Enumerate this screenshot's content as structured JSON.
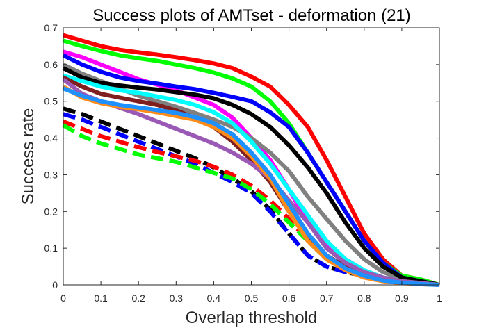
{
  "chart_data": {
    "type": "line",
    "title": "Success plots of AMTset - deformation (21)",
    "xlabel": "Overlap threshold",
    "ylabel": "Success rate",
    "xlim": [
      0,
      1
    ],
    "ylim": [
      0,
      0.7
    ],
    "x_ticks": [
      "0",
      "0.1",
      "0.2",
      "0.3",
      "0.4",
      "0.5",
      "0.6",
      "0.7",
      "0.8",
      "0.9",
      "1"
    ],
    "y_ticks": [
      "0",
      "0.1",
      "0.2",
      "0.3",
      "0.4",
      "0.5",
      "0.6",
      "0.7"
    ],
    "grid": false,
    "x": [
      0,
      0.05,
      0.1,
      0.15,
      0.2,
      0.25,
      0.3,
      0.35,
      0.4,
      0.45,
      0.5,
      0.55,
      0.6,
      0.65,
      0.7,
      0.75,
      0.8,
      0.85,
      0.9,
      0.95,
      1.0
    ],
    "series": [
      {
        "color": "#ff0000",
        "dash": false,
        "values": [
          0.68,
          0.665,
          0.65,
          0.64,
          0.633,
          0.627,
          0.62,
          0.612,
          0.603,
          0.59,
          0.567,
          0.54,
          0.49,
          0.43,
          0.34,
          0.24,
          0.14,
          0.07,
          0.025,
          0.015,
          0.0
        ]
      },
      {
        "color": "#00ff00",
        "dash": false,
        "values": [
          0.665,
          0.65,
          0.637,
          0.625,
          0.617,
          0.61,
          0.6,
          0.59,
          0.578,
          0.562,
          0.54,
          0.5,
          0.44,
          0.36,
          0.28,
          0.2,
          0.12,
          0.06,
          0.025,
          0.015,
          0.0
        ]
      },
      {
        "color": "#ff00ff",
        "dash": false,
        "values": [
          0.635,
          0.62,
          0.6,
          0.58,
          0.56,
          0.545,
          0.53,
          0.51,
          0.49,
          0.455,
          0.4,
          0.34,
          0.26,
          0.17,
          0.11,
          0.07,
          0.04,
          0.02,
          0.01,
          0.005,
          0.0
        ]
      },
      {
        "color": "#0000ff",
        "dash": false,
        "values": [
          0.625,
          0.6,
          0.58,
          0.565,
          0.555,
          0.548,
          0.54,
          0.533,
          0.523,
          0.512,
          0.5,
          0.47,
          0.43,
          0.36,
          0.28,
          0.2,
          0.12,
          0.06,
          0.02,
          0.01,
          0.0
        ]
      },
      {
        "color": "#808080",
        "dash": false,
        "values": [
          0.6,
          0.575,
          0.555,
          0.535,
          0.515,
          0.5,
          0.485,
          0.468,
          0.45,
          0.43,
          0.4,
          0.36,
          0.31,
          0.24,
          0.18,
          0.12,
          0.07,
          0.035,
          0.015,
          0.005,
          0.0
        ]
      },
      {
        "color": "#000000",
        "dash": false,
        "values": [
          0.59,
          0.565,
          0.55,
          0.543,
          0.537,
          0.532,
          0.525,
          0.518,
          0.508,
          0.49,
          0.465,
          0.43,
          0.38,
          0.32,
          0.25,
          0.17,
          0.1,
          0.05,
          0.02,
          0.01,
          0.0
        ]
      },
      {
        "color": "#00ffff",
        "dash": false,
        "values": [
          0.57,
          0.555,
          0.54,
          0.53,
          0.523,
          0.513,
          0.503,
          0.49,
          0.47,
          0.44,
          0.39,
          0.33,
          0.26,
          0.19,
          0.12,
          0.07,
          0.04,
          0.02,
          0.01,
          0.005,
          0.0
        ]
      },
      {
        "color": "#7f1f1f",
        "dash": false,
        "values": [
          0.565,
          0.54,
          0.52,
          0.51,
          0.5,
          0.49,
          0.475,
          0.455,
          0.43,
          0.39,
          0.34,
          0.28,
          0.2,
          0.13,
          0.08,
          0.05,
          0.03,
          0.015,
          0.01,
          0.005,
          0.0
        ]
      },
      {
        "color": "#9b59b6",
        "dash": false,
        "values": [
          0.56,
          0.52,
          0.5,
          0.482,
          0.465,
          0.445,
          0.425,
          0.405,
          0.385,
          0.36,
          0.33,
          0.29,
          0.23,
          0.17,
          0.1,
          0.06,
          0.035,
          0.02,
          0.01,
          0.005,
          0.0
        ]
      },
      {
        "color": "#ff8c1a",
        "dash": false,
        "values": [
          0.54,
          0.51,
          0.495,
          0.485,
          0.478,
          0.47,
          0.46,
          0.45,
          0.43,
          0.4,
          0.35,
          0.29,
          0.2,
          0.12,
          0.07,
          0.04,
          0.02,
          0.01,
          0.005,
          0.002,
          0.0
        ]
      },
      {
        "color": "#1e90ff",
        "dash": false,
        "values": [
          0.535,
          0.515,
          0.5,
          0.49,
          0.483,
          0.476,
          0.468,
          0.457,
          0.44,
          0.41,
          0.36,
          0.3,
          0.22,
          0.14,
          0.08,
          0.045,
          0.025,
          0.012,
          0.006,
          0.002,
          0.0
        ]
      },
      {
        "color": "#000000",
        "dash": true,
        "values": [
          0.48,
          0.465,
          0.445,
          0.425,
          0.405,
          0.385,
          0.365,
          0.345,
          0.32,
          0.29,
          0.255,
          0.205,
          0.14,
          0.08,
          0.05,
          0.035,
          0.025,
          0.015,
          0.01,
          0.005,
          0.0
        ]
      },
      {
        "color": "#0000ff",
        "dash": true,
        "values": [
          0.465,
          0.45,
          0.43,
          0.41,
          0.39,
          0.37,
          0.35,
          0.33,
          0.305,
          0.28,
          0.25,
          0.2,
          0.14,
          0.08,
          0.05,
          0.035,
          0.025,
          0.015,
          0.01,
          0.005,
          0.0
        ]
      },
      {
        "color": "#ff0000",
        "dash": true,
        "values": [
          0.445,
          0.425,
          0.405,
          0.39,
          0.375,
          0.362,
          0.35,
          0.338,
          0.322,
          0.3,
          0.27,
          0.23,
          0.18,
          0.12,
          0.07,
          0.045,
          0.03,
          0.018,
          0.01,
          0.005,
          0.0
        ]
      },
      {
        "color": "#00ff00",
        "dash": true,
        "values": [
          0.435,
          0.405,
          0.385,
          0.37,
          0.355,
          0.345,
          0.335,
          0.32,
          0.305,
          0.29,
          0.26,
          0.22,
          0.17,
          0.12,
          0.07,
          0.045,
          0.03,
          0.018,
          0.01,
          0.005,
          0.0
        ]
      }
    ]
  }
}
